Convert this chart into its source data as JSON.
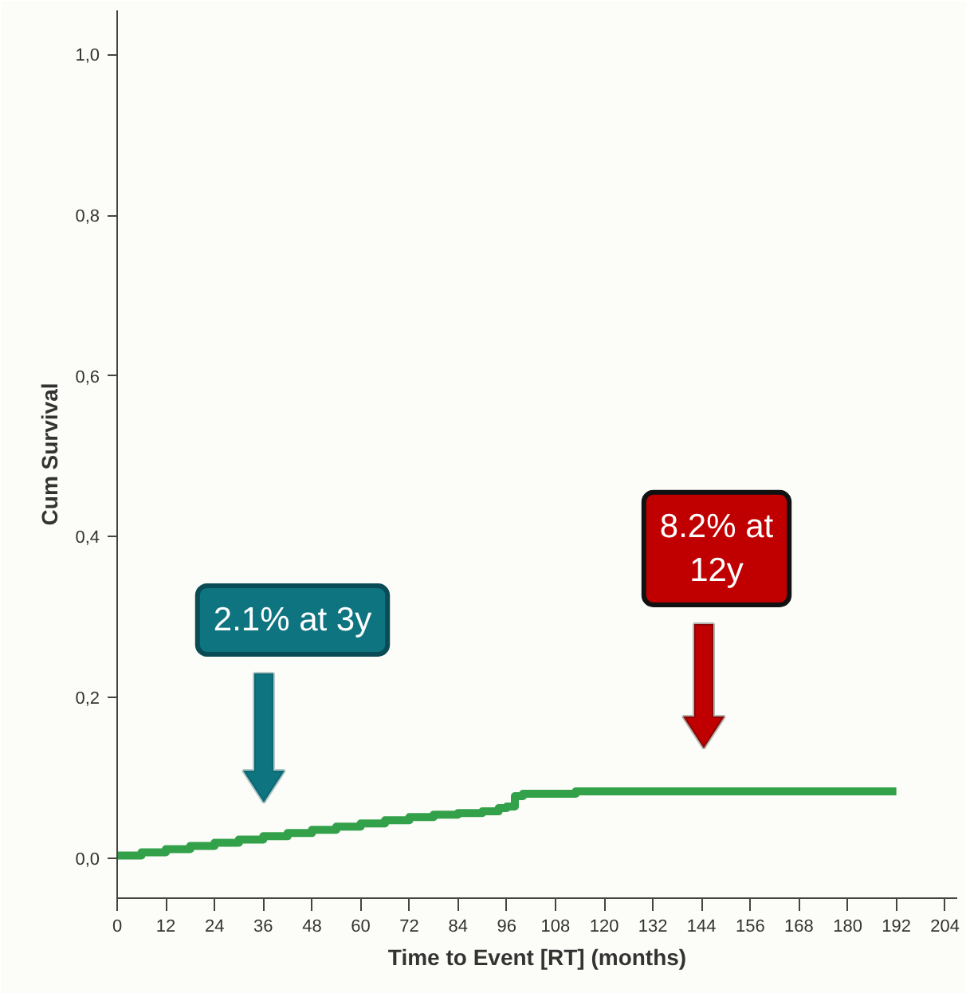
{
  "chart_data": {
    "type": "step",
    "xlabel": "Time to Event [RT] (months)",
    "ylabel": "Cum Survival",
    "x": [
      0,
      6,
      12,
      18,
      24,
      30,
      36,
      42,
      48,
      54,
      60,
      66,
      72,
      78,
      84,
      90,
      94,
      96,
      98,
      100,
      106,
      113,
      120,
      132,
      144,
      156,
      168,
      180,
      192
    ],
    "series": [
      {
        "color": "#33a04a",
        "values": [
          0.003,
          0.007,
          0.011,
          0.015,
          0.019,
          0.023,
          0.027,
          0.031,
          0.035,
          0.039,
          0.043,
          0.047,
          0.051,
          0.054,
          0.056,
          0.058,
          0.062,
          0.064,
          0.077,
          0.08,
          0.08,
          0.083,
          0.083,
          0.083,
          0.083,
          0.083,
          0.083,
          0.083,
          0.083
        ]
      }
    ],
    "xlim": [
      0,
      207
    ],
    "ylim": [
      -0.05,
      1.055
    ],
    "xticks": [
      0,
      12,
      24,
      36,
      48,
      60,
      72,
      84,
      96,
      108,
      120,
      132,
      144,
      156,
      168,
      180,
      192,
      204
    ],
    "yticks": [
      {
        "value": 0,
        "label": "0,0"
      },
      {
        "value": 0.2,
        "label": "0,2"
      },
      {
        "value": 0.4,
        "label": "0,4"
      },
      {
        "value": 0.6,
        "label": "0,6"
      },
      {
        "value": 0.8,
        "label": "0,8"
      },
      {
        "value": 1.0,
        "label": "1,0"
      }
    ],
    "annotations": [
      "2.1% at 3y",
      "8.2% at 12y"
    ],
    "grid": false,
    "marker": "none",
    "line_style": "solid"
  }
}
